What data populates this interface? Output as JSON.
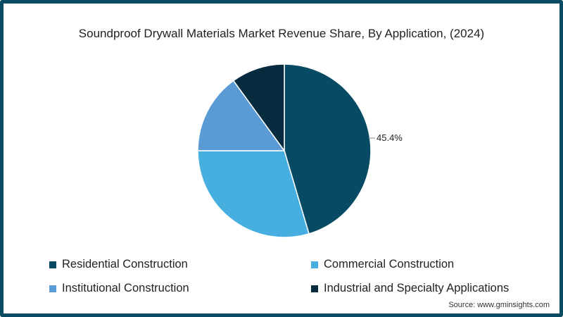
{
  "chart_data": {
    "type": "pie",
    "title": "Soundproof Drywall Materials Market Revenue Share, By Application, (2024)",
    "categories": [
      "Residential Construction",
      "Commercial Construction",
      "Institutional Construction",
      "Industrial and Specialty Applications"
    ],
    "values": [
      45.4,
      29.6,
      15.0,
      10.0
    ],
    "colors": [
      "#064a63",
      "#47aee0",
      "#5b9bd5",
      "#062a3e"
    ],
    "annotations": [
      {
        "category": "Residential Construction",
        "label": "45.4%"
      }
    ],
    "legend_position": "bottom",
    "start_angle": "12 o'clock, clockwise",
    "source": "Source: www.gminsights.com"
  },
  "legend": {
    "items": [
      {
        "label": "Residential Construction",
        "color": "#064a63"
      },
      {
        "label": "Commercial Construction",
        "color": "#47aee0"
      },
      {
        "label": "Institutional Construction",
        "color": "#5b9bd5"
      },
      {
        "label": "Industrial and Specialty Applications",
        "color": "#062a3e"
      }
    ]
  },
  "labels": {
    "residential": "45.4%"
  },
  "source": "Source: www.gminsights.com"
}
